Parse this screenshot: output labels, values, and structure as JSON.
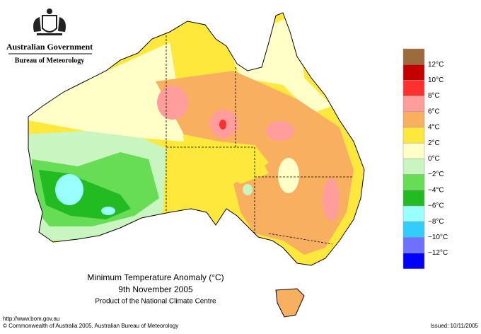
{
  "header": {
    "government": "Australian Government",
    "bureau": "Bureau of Meteorology"
  },
  "legend": {
    "labels": [
      "12°C",
      "10°C",
      "8°C",
      "6°C",
      "4°C",
      "2°C",
      "0°C",
      "−2°C",
      "−4°C",
      "−6°C",
      "−8°C",
      "−10°C",
      "−12°C"
    ],
    "colors": [
      "#9c6b3c",
      "#c40000",
      "#ff3030",
      "#ff9c9c",
      "#f8b060",
      "#ffe83c",
      "#ffffc8",
      "#c8f5c0",
      "#66dd55",
      "#22bb22",
      "#99ffff",
      "#33ccff",
      "#7070ff",
      "#0000ff"
    ]
  },
  "caption": {
    "title": "Minimum Temperature Anomaly (°C)",
    "date": "9th November 2005",
    "product": "Product of the National Climate Centre"
  },
  "footer": {
    "url": "http://www.bom.gov.au",
    "copyright": "© Commonwealth of Australia 2005, Australian Bureau of Meteorology",
    "issued": "Issued: 10/11/2005"
  }
}
